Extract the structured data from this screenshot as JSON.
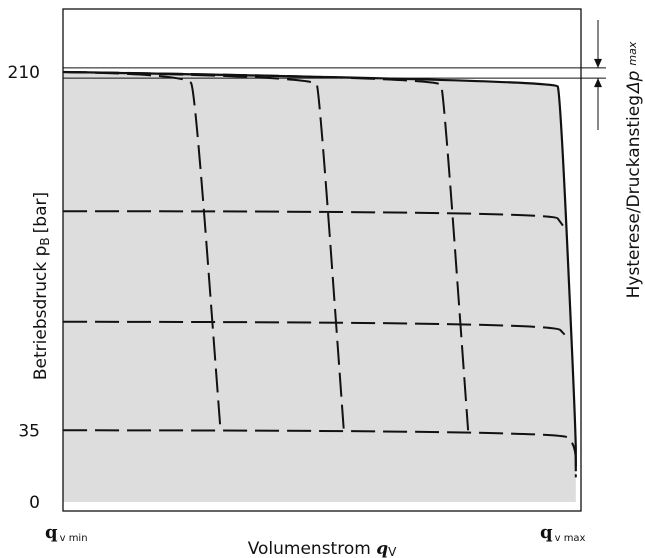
{
  "chart_data": {
    "type": "line",
    "xlabel": "Volumenstrom",
    "xlabel_symbol": "q",
    "xlabel_symbol_sub": "V",
    "ylabel": "Betriebsdruck p",
    "ylabel_sub": "B",
    "ylabel_unit": "[bar]",
    "x_tick_labels": [
      {
        "main": "q",
        "sub": "v min"
      },
      {
        "main": "q",
        "sub": "v max"
      }
    ],
    "xlim": [
      0,
      100
    ],
    "ylim": [
      0,
      250
    ],
    "y_ticks": [
      0,
      35,
      210
    ],
    "y_tick_labels": [
      "0",
      "35",
      "210"
    ],
    "annotation": {
      "text": "Hysterese/Druckanstieg",
      "symbol": "Δp",
      "symbol_sub": "max",
      "upper_value": 212,
      "lower_value": 207
    },
    "fill_color": "#dddddd",
    "series": [
      {
        "style": "solid",
        "values": [
          {
            "x": 0,
            "y": 210
          },
          {
            "x": 95,
            "y": 206
          },
          {
            "x": 96,
            "y": 200
          },
          {
            "x": 99,
            "y": 35
          },
          {
            "x": 99,
            "y": 15
          }
        ]
      },
      {
        "style": "dashed",
        "values": [
          {
            "x": 0,
            "y": 210
          },
          {
            "x": 24,
            "y": 209
          },
          {
            "x": 25.5,
            "y": 200
          },
          {
            "x": 30.4,
            "y": 35
          }
        ]
      },
      {
        "style": "dashed",
        "values": [
          {
            "x": 0,
            "y": 210
          },
          {
            "x": 48.5,
            "y": 208
          },
          {
            "x": 49.5,
            "y": 200
          },
          {
            "x": 54.2,
            "y": 35
          }
        ]
      },
      {
        "style": "dashed",
        "values": [
          {
            "x": 0,
            "y": 210
          },
          {
            "x": 72.5,
            "y": 207.5
          },
          {
            "x": 73.5,
            "y": 200
          },
          {
            "x": 78.2,
            "y": 35
          }
        ]
      },
      {
        "style": "dashed",
        "values": [
          {
            "x": 0,
            "y": 142
          },
          {
            "x": 94.5,
            "y": 142
          },
          {
            "x": 96.5,
            "y": 135
          }
        ]
      },
      {
        "style": "dashed",
        "values": [
          {
            "x": 0,
            "y": 88
          },
          {
            "x": 94.5,
            "y": 88
          },
          {
            "x": 97.5,
            "y": 80
          }
        ]
      },
      {
        "style": "dashed",
        "values": [
          {
            "x": 0,
            "y": 35
          },
          {
            "x": 96,
            "y": 35
          },
          {
            "x": 99,
            "y": 28
          },
          {
            "x": 99,
            "y": 12
          }
        ]
      }
    ]
  }
}
